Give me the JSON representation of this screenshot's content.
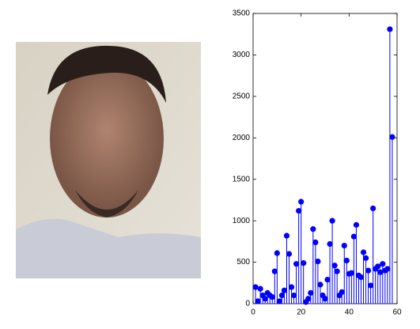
{
  "chart_data": {
    "type": "stem",
    "color": "#0000ff",
    "x": [
      1,
      2,
      3,
      4,
      5,
      6,
      7,
      8,
      9,
      10,
      11,
      12,
      13,
      14,
      15,
      16,
      17,
      18,
      19,
      20,
      21,
      22,
      23,
      24,
      25,
      26,
      27,
      28,
      29,
      30,
      31,
      32,
      33,
      34,
      35,
      36,
      37,
      38,
      39,
      40,
      41,
      42,
      43,
      44,
      45,
      46,
      47,
      48,
      49,
      50,
      51,
      52,
      53,
      54,
      55,
      56,
      57,
      58
    ],
    "values": [
      200,
      30,
      180,
      100,
      60,
      130,
      100,
      80,
      390,
      610,
      30,
      100,
      160,
      820,
      600,
      200,
      100,
      480,
      1120,
      1230,
      490,
      20,
      60,
      130,
      900,
      740,
      510,
      230,
      100,
      60,
      290,
      720,
      1000,
      460,
      390,
      100,
      140,
      700,
      520,
      360,
      370,
      810,
      950,
      340,
      320,
      620,
      550,
      400,
      220,
      1150,
      420,
      450,
      380,
      480,
      400,
      420,
      3310,
      2010
    ],
    "xlim": [
      0,
      60
    ],
    "xticks": [
      0,
      20,
      40,
      60
    ],
    "ylim": [
      0,
      3500
    ],
    "yticks": [
      0,
      500,
      1000,
      1500,
      2000,
      2500,
      3000,
      3500
    ]
  }
}
